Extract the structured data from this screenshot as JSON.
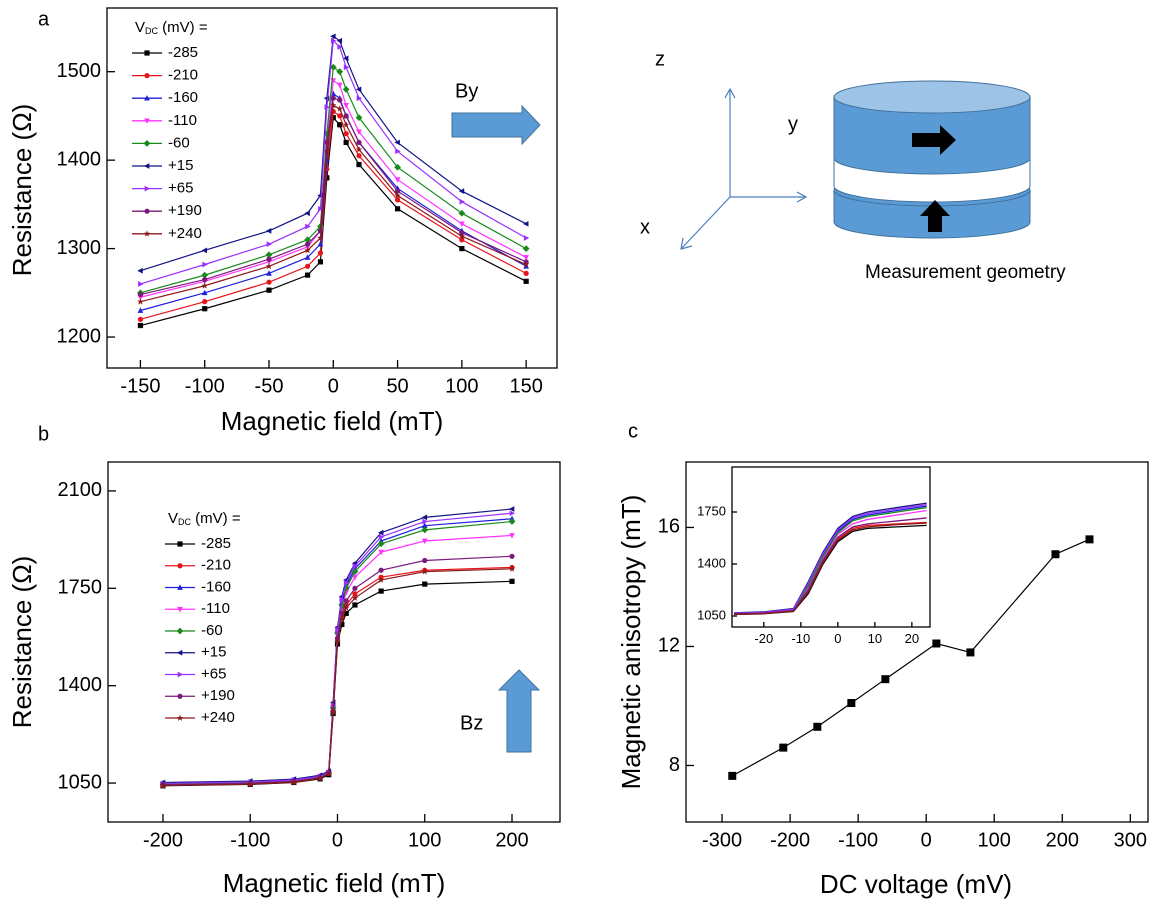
{
  "chart_data": [
    {
      "type": "line",
      "panel_label": "a",
      "x_label": "Magnetic field (mT)",
      "y_label": "Resistance (Ω)",
      "legend_title": {
        "symbol": "V",
        "subscript": "DC",
        "rest": " (mV) ="
      },
      "annotation": "By",
      "x": [
        -150,
        -100,
        -50,
        -20,
        -10,
        -5,
        0,
        5,
        10,
        20,
        50,
        100,
        150
      ],
      "xlim": [
        -176,
        174
      ],
      "xticks": [
        -150,
        -100,
        -50,
        0,
        50,
        100,
        150
      ],
      "ylim": [
        1165,
        1572
      ],
      "yticks": [
        1200,
        1300,
        1400,
        1500
      ],
      "series": [
        {
          "name": "-285",
          "color": "#000000",
          "marker": "square",
          "values": [
            1213,
            1232,
            1253,
            1270,
            1285,
            1380,
            1448,
            1440,
            1420,
            1395,
            1345,
            1300,
            1263
          ]
        },
        {
          "name": "-210",
          "color": "#e8141b",
          "marker": "circle",
          "values": [
            1220,
            1240,
            1262,
            1280,
            1295,
            1390,
            1455,
            1450,
            1430,
            1405,
            1355,
            1310,
            1272
          ]
        },
        {
          "name": "-160",
          "color": "#1f1fe0",
          "marker": "triangle-up",
          "values": [
            1230,
            1250,
            1272,
            1290,
            1305,
            1400,
            1475,
            1470,
            1450,
            1420,
            1368,
            1320,
            1280
          ]
        },
        {
          "name": "-110",
          "color": "#ff33ff",
          "marker": "triangle-down",
          "values": [
            1245,
            1263,
            1285,
            1302,
            1320,
            1420,
            1490,
            1485,
            1462,
            1432,
            1378,
            1328,
            1290
          ]
        },
        {
          "name": "-60",
          "color": "#1a8a1a",
          "marker": "diamond",
          "values": [
            1250,
            1270,
            1293,
            1310,
            1325,
            1430,
            1505,
            1500,
            1480,
            1448,
            1392,
            1340,
            1300
          ]
        },
        {
          "name": "+15",
          "color": "#141486",
          "marker": "triangle-left",
          "values": [
            1275,
            1298,
            1320,
            1340,
            1360,
            1470,
            1540,
            1535,
            1515,
            1480,
            1420,
            1365,
            1328
          ]
        },
        {
          "name": "+65",
          "color": "#9b30ff",
          "marker": "triangle-right",
          "values": [
            1260,
            1282,
            1305,
            1325,
            1345,
            1460,
            1535,
            1528,
            1505,
            1470,
            1410,
            1353,
            1312
          ]
        },
        {
          "name": "+190",
          "color": "#7b1a7b",
          "marker": "circle",
          "values": [
            1248,
            1265,
            1288,
            1305,
            1320,
            1420,
            1470,
            1468,
            1450,
            1420,
            1365,
            1318,
            1285
          ]
        },
        {
          "name": "+240",
          "color": "#8b1a1a",
          "marker": "star",
          "values": [
            1240,
            1258,
            1280,
            1298,
            1312,
            1410,
            1462,
            1458,
            1440,
            1412,
            1360,
            1314,
            1282
          ]
        }
      ]
    },
    {
      "type": "line",
      "panel_label": "b",
      "x_label": "Magnetic field (mT)",
      "y_label": "Resistance (Ω)",
      "legend_title": {
        "symbol": "V",
        "subscript": "DC",
        "rest": " (mV) ="
      },
      "annotation": "Bz",
      "x": [
        -200,
        -100,
        -50,
        -20,
        -10,
        -5,
        0,
        5,
        10,
        20,
        50,
        100,
        200
      ],
      "xlim": [
        -263,
        255
      ],
      "xticks": [
        -200,
        -100,
        0,
        100,
        200
      ],
      "ylim": [
        910,
        2204
      ],
      "yticks": [
        1050,
        1400,
        1750,
        2100
      ],
      "series": [
        {
          "name": "-285",
          "color": "#000000",
          "marker": "square",
          "values": [
            1040,
            1045,
            1052,
            1065,
            1080,
            1300,
            1550,
            1620,
            1660,
            1690,
            1740,
            1765,
            1775
          ]
        },
        {
          "name": "-210",
          "color": "#e8141b",
          "marker": "circle",
          "values": [
            1042,
            1047,
            1054,
            1068,
            1085,
            1310,
            1570,
            1650,
            1690,
            1730,
            1790,
            1815,
            1825
          ]
        },
        {
          "name": "-160",
          "color": "#1f1fe0",
          "marker": "triangle-up",
          "values": [
            1050,
            1055,
            1062,
            1075,
            1090,
            1330,
            1600,
            1700,
            1760,
            1820,
            1920,
            1975,
            2000
          ]
        },
        {
          "name": "-110",
          "color": "#ff33ff",
          "marker": "triangle-down",
          "values": [
            1045,
            1050,
            1057,
            1070,
            1087,
            1320,
            1580,
            1680,
            1735,
            1790,
            1880,
            1920,
            1940
          ]
        },
        {
          "name": "-60",
          "color": "#1a8a1a",
          "marker": "diamond",
          "values": [
            1046,
            1051,
            1058,
            1071,
            1088,
            1320,
            1590,
            1690,
            1750,
            1810,
            1910,
            1960,
            1990
          ]
        },
        {
          "name": "+15",
          "color": "#141486",
          "marker": "triangle-left",
          "values": [
            1052,
            1057,
            1064,
            1078,
            1093,
            1340,
            1610,
            1720,
            1780,
            1840,
            1950,
            2005,
            2035
          ]
        },
        {
          "name": "+65",
          "color": "#9b30ff",
          "marker": "triangle-right",
          "values": [
            1049,
            1054,
            1061,
            1074,
            1090,
            1330,
            1600,
            1710,
            1770,
            1830,
            1935,
            1990,
            2020
          ]
        },
        {
          "name": "+190",
          "color": "#7b1a7b",
          "marker": "circle",
          "values": [
            1044,
            1049,
            1056,
            1069,
            1086,
            1310,
            1570,
            1660,
            1705,
            1750,
            1815,
            1850,
            1865
          ]
        },
        {
          "name": "+240",
          "color": "#8b1a1a",
          "marker": "star",
          "values": [
            1041,
            1046,
            1053,
            1067,
            1084,
            1305,
            1560,
            1640,
            1680,
            1715,
            1780,
            1810,
            1820
          ]
        }
      ]
    },
    {
      "type": "line",
      "panel_label": "c",
      "x_label": "DC voltage (mV)",
      "y_label": "Magnetic anisotropy (mT)",
      "x": [
        -285,
        -210,
        -160,
        -110,
        -60,
        15,
        65,
        190,
        240
      ],
      "values": [
        7.65,
        8.6,
        9.3,
        10.1,
        10.9,
        12.1,
        11.8,
        15.1,
        15.6
      ],
      "color": "#000000",
      "marker": "square",
      "xlim": [
        -353,
        326
      ],
      "xticks": [
        -300,
        -200,
        -100,
        0,
        100,
        200,
        300
      ],
      "ylim": [
        6.1,
        18.2
      ],
      "yticks": [
        8,
        12,
        16
      ]
    },
    {
      "type": "line",
      "x": [
        -28,
        -20,
        -12,
        -8,
        -4,
        0,
        4,
        8,
        16,
        24
      ],
      "xlim": [
        -28.6,
        24.9
      ],
      "xticks": [
        -20,
        -10,
        0,
        10,
        20
      ],
      "ylim": [
        976,
        2053
      ],
      "yticks": [
        1050,
        1400,
        1750
      ],
      "series": [
        {
          "color": "#000000",
          "values": [
            1060,
            1065,
            1080,
            1200,
            1400,
            1550,
            1620,
            1640,
            1650,
            1660
          ]
        },
        {
          "color": "#e8141b",
          "values": [
            1062,
            1067,
            1085,
            1220,
            1420,
            1570,
            1640,
            1660,
            1670,
            1680
          ]
        },
        {
          "color": "#1f1fe0",
          "values": [
            1070,
            1075,
            1095,
            1260,
            1460,
            1620,
            1700,
            1730,
            1760,
            1790
          ]
        },
        {
          "color": "#ff33ff",
          "values": [
            1066,
            1071,
            1090,
            1240,
            1440,
            1600,
            1670,
            1700,
            1730,
            1760
          ]
        },
        {
          "color": "#1a8a1a",
          "values": [
            1067,
            1072,
            1092,
            1250,
            1450,
            1610,
            1690,
            1720,
            1750,
            1780
          ]
        },
        {
          "color": "#141486",
          "values": [
            1072,
            1078,
            1100,
            1280,
            1480,
            1640,
            1720,
            1750,
            1780,
            1810
          ]
        },
        {
          "color": "#9b30ff",
          "values": [
            1069,
            1074,
            1096,
            1270,
            1470,
            1630,
            1710,
            1740,
            1770,
            1800
          ]
        },
        {
          "color": "#7b1a7b",
          "values": [
            1064,
            1069,
            1086,
            1225,
            1425,
            1580,
            1650,
            1670,
            1690,
            1710
          ]
        },
        {
          "color": "#8b1a1a",
          "values": [
            1061,
            1066,
            1083,
            1210,
            1410,
            1560,
            1630,
            1650,
            1665,
            1675
          ]
        }
      ]
    }
  ],
  "diagram": {
    "axes": [
      "z",
      "y",
      "x"
    ],
    "caption": "Measurement geometry"
  }
}
